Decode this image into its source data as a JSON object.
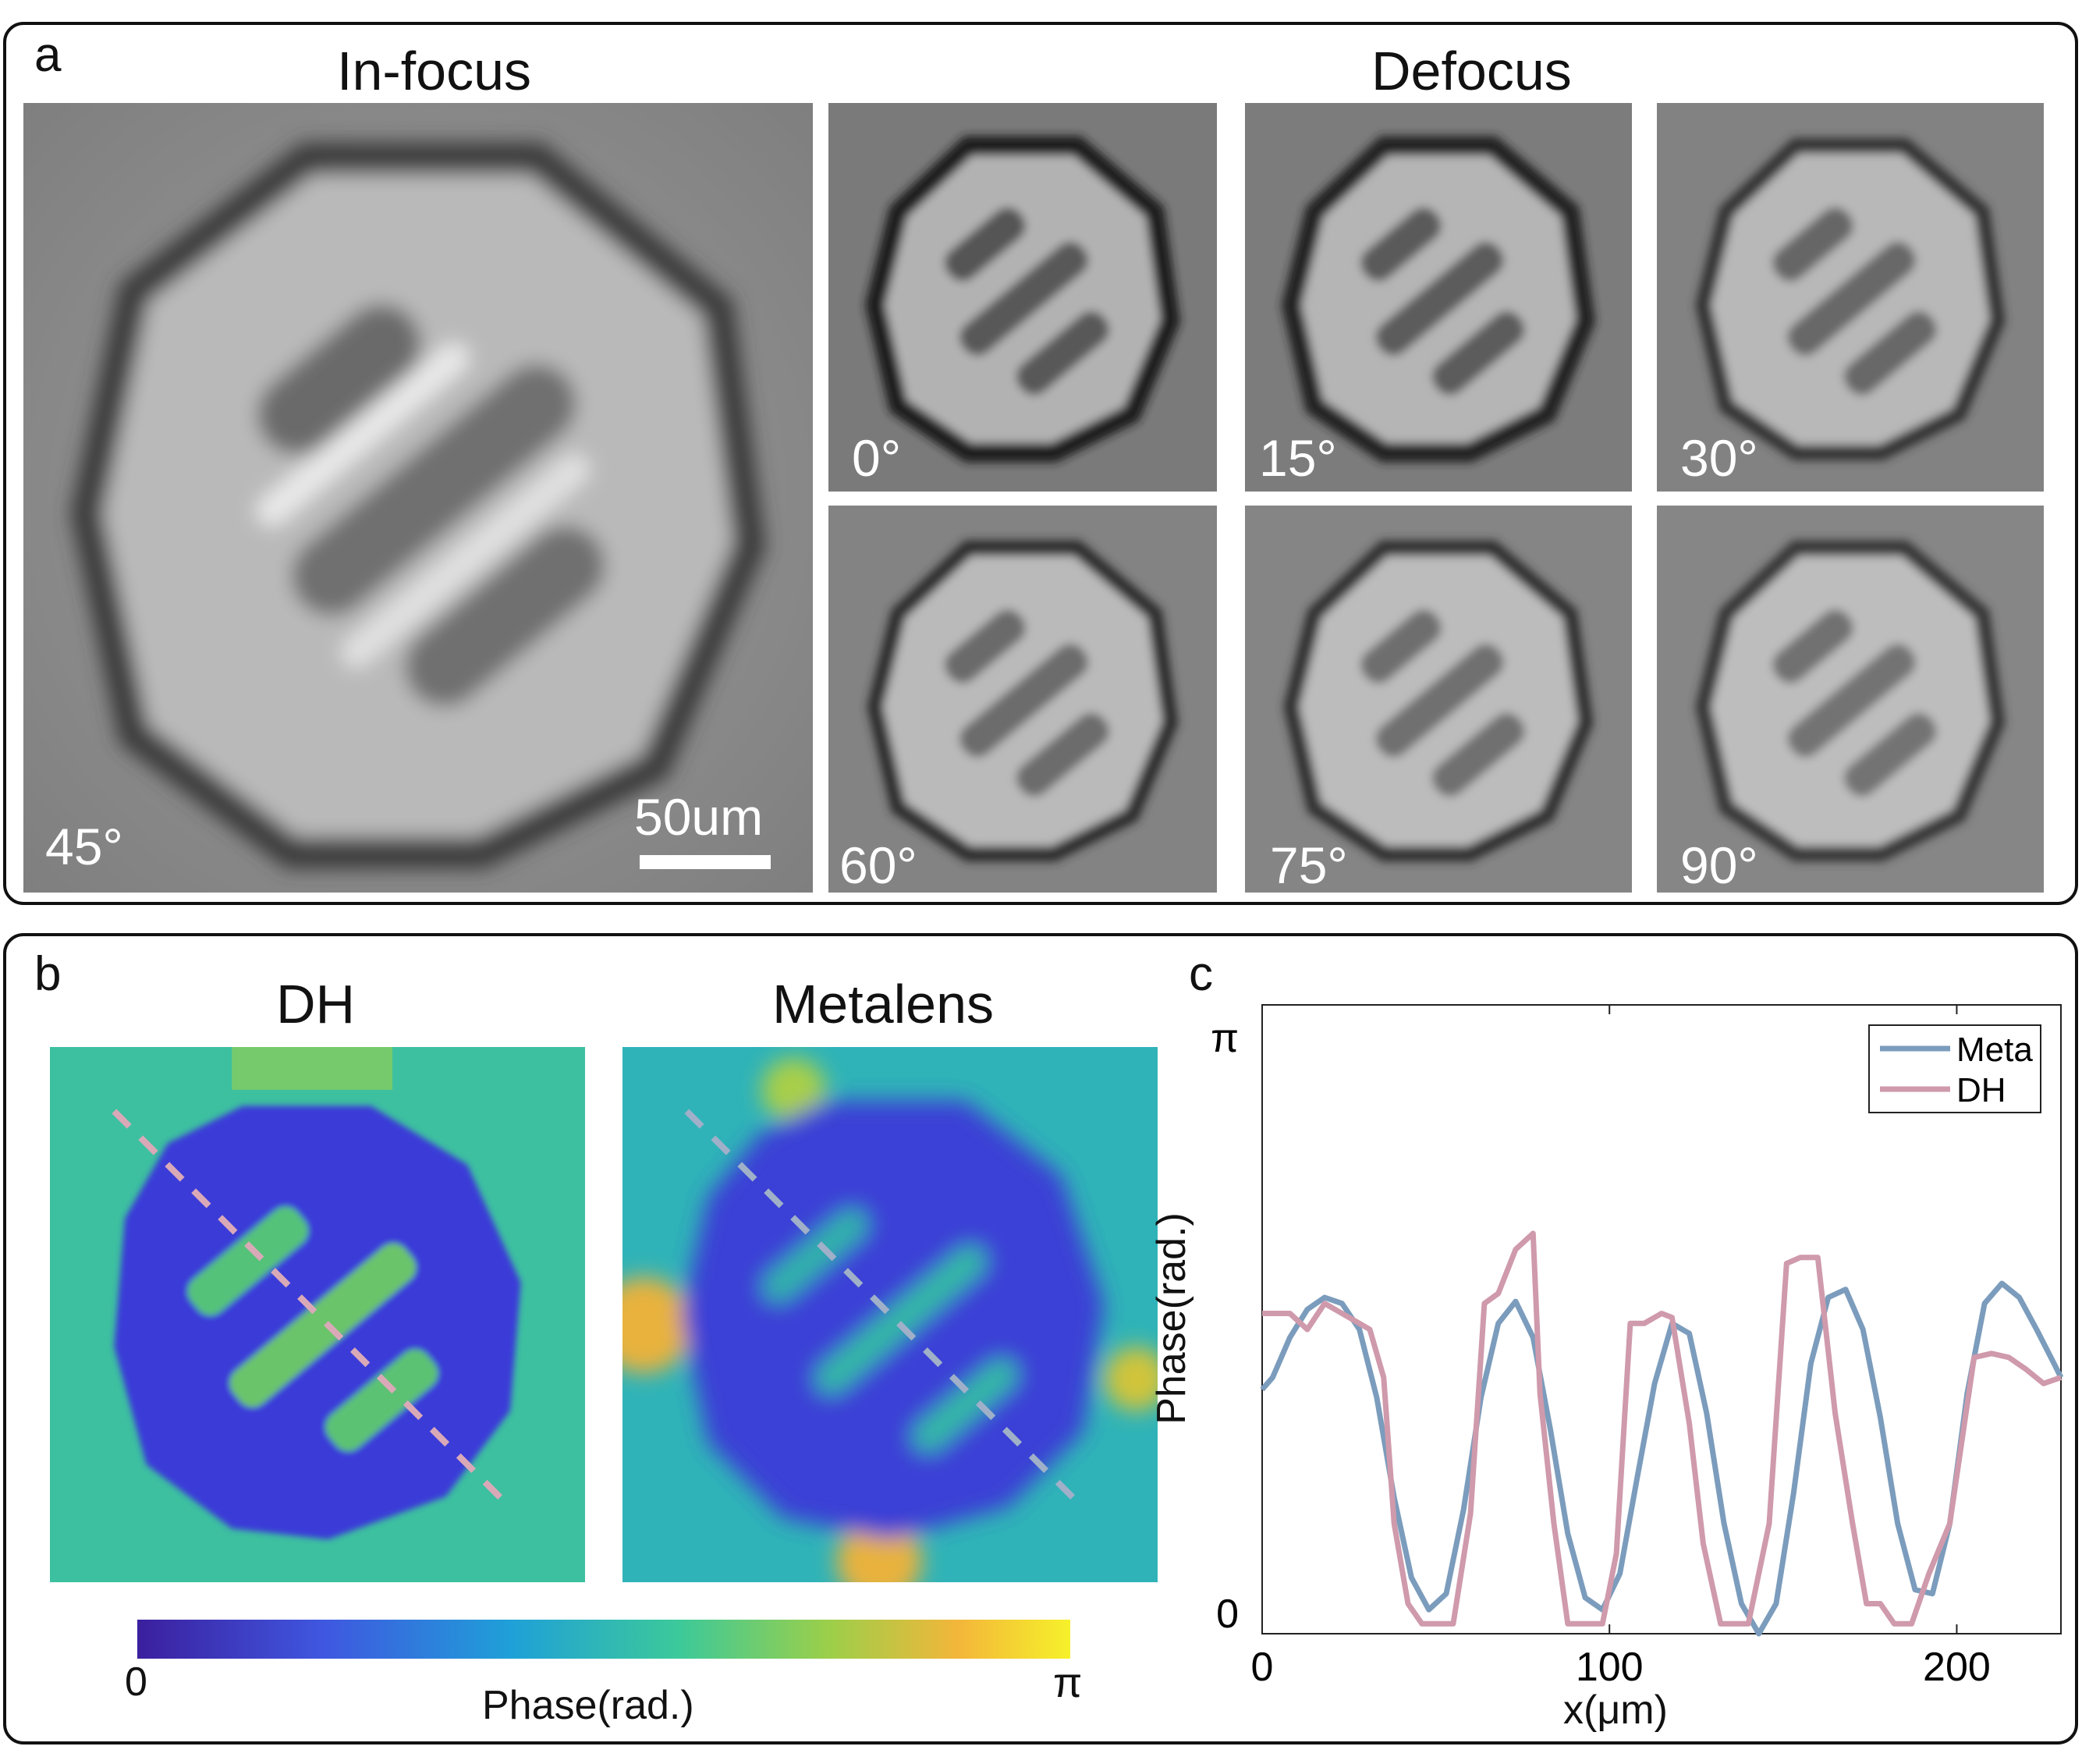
{
  "panel_a": {
    "label": "a",
    "title_left": "In-focus",
    "title_right": "Defocus",
    "main_angle": "45°",
    "scalebar": "50um",
    "angles": [
      "0°",
      "15°",
      "30°",
      "60°",
      "75°",
      "90°"
    ]
  },
  "panel_b": {
    "label": "b",
    "left_title": "DH",
    "right_title": "Metalens",
    "colorbar_min": "0",
    "colorbar_max": "π",
    "colorbar_label": "Phase(rad.)",
    "colormap": [
      "#3b1f9e",
      "#3f57e0",
      "#1fa0d8",
      "#3cc99a",
      "#9bcf4a",
      "#f3b63a",
      "#f6f12a"
    ]
  },
  "panel_c": {
    "label": "c",
    "chart_data": {
      "type": "line",
      "xlabel": "x(μm)",
      "ylabel": "Phase(rad.)",
      "xlim": [
        0,
        230
      ],
      "ylim": [
        0,
        3.14159
      ],
      "xticks": [
        0,
        100,
        200
      ],
      "xtick_labels": [
        "0",
        "100",
        "200"
      ],
      "yticks": [
        0,
        3.14159
      ],
      "ytick_labels": [
        "0",
        "π"
      ],
      "legend": "top-right",
      "series": [
        {
          "name": "Meta",
          "color": "#7b9cbc",
          "x": [
            0,
            3,
            8,
            13,
            18,
            23,
            28,
            33,
            38,
            43,
            48,
            53,
            58,
            63,
            68,
            73,
            78,
            83,
            88,
            93,
            98,
            103,
            108,
            113,
            118,
            123,
            128,
            133,
            138,
            143,
            148,
            153,
            158,
            163,
            168,
            173,
            178,
            183,
            188,
            193,
            198,
            203,
            208,
            213,
            218,
            223,
            228,
            230
          ],
          "y": [
            1.22,
            1.28,
            1.48,
            1.62,
            1.68,
            1.65,
            1.52,
            1.18,
            0.68,
            0.28,
            0.12,
            0.2,
            0.62,
            1.18,
            1.55,
            1.66,
            1.48,
            1.02,
            0.5,
            0.18,
            0.12,
            0.3,
            0.78,
            1.25,
            1.55,
            1.5,
            1.1,
            0.55,
            0.15,
            0.0,
            0.15,
            0.7,
            1.35,
            1.68,
            1.72,
            1.52,
            1.08,
            0.55,
            0.22,
            0.2,
            0.55,
            1.2,
            1.65,
            1.75,
            1.68,
            1.52,
            1.35,
            1.28
          ]
        },
        {
          "name": "DH",
          "color": "#cf9aab",
          "x": [
            0,
            3,
            8,
            13,
            18,
            23,
            28,
            31,
            35,
            38,
            42,
            46,
            50,
            55,
            60,
            64,
            68,
            73,
            78,
            80,
            84,
            88,
            93,
            98,
            102,
            106,
            110,
            115,
            118,
            123,
            127,
            132,
            136,
            140,
            146,
            151,
            155,
            160,
            165,
            170,
            174,
            178,
            182,
            187,
            192,
            198,
            205,
            210,
            215,
            220,
            225,
            230
          ],
          "y": [
            1.6,
            1.6,
            1.6,
            1.52,
            1.65,
            1.6,
            1.55,
            1.52,
            1.28,
            0.55,
            0.15,
            0.05,
            0.05,
            0.05,
            0.6,
            1.65,
            1.7,
            1.92,
            2.0,
            1.2,
            0.55,
            0.05,
            0.05,
            0.05,
            0.4,
            1.55,
            1.55,
            1.6,
            1.58,
            1.05,
            0.45,
            0.05,
            0.05,
            0.05,
            0.55,
            1.85,
            1.88,
            1.88,
            1.1,
            0.55,
            0.15,
            0.15,
            0.05,
            0.05,
            0.3,
            0.55,
            1.38,
            1.4,
            1.38,
            1.32,
            1.25,
            1.28
          ]
        }
      ]
    }
  }
}
